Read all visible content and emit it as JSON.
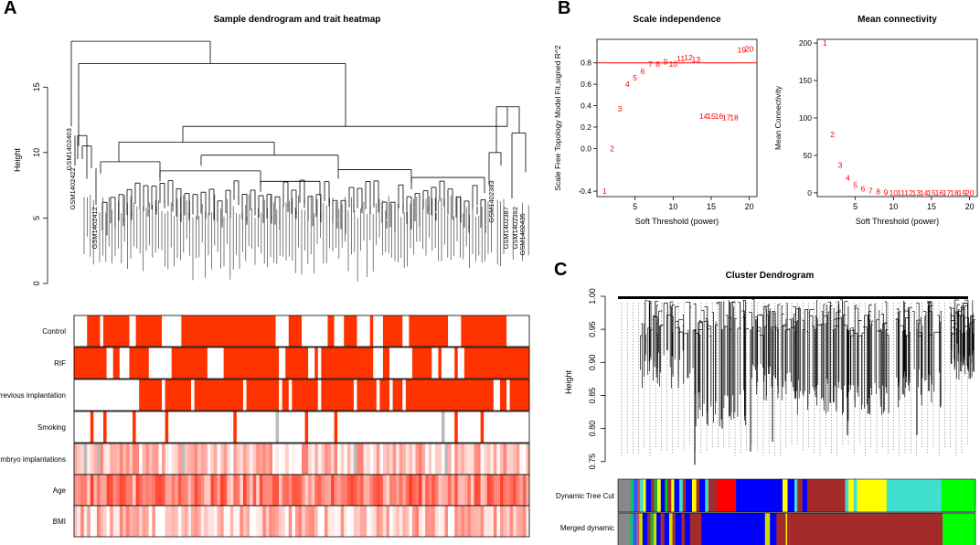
{
  "panels": {
    "a": "A",
    "b": "B",
    "c": "C"
  },
  "chart_data": [
    {
      "id": "A",
      "type": "dendrogram_heatmap",
      "title": "Sample dendrogram and trait heatmap",
      "ylabel": "Height",
      "ylim": [
        0,
        19
      ],
      "yticks": [
        0,
        5,
        10,
        15
      ],
      "labeled_samples": [
        "GSM1402403",
        "GSM1402422",
        "GSM1402383",
        "GSM1402392",
        "GSM1402435",
        "GSM1402387",
        "GSM1402412"
      ],
      "traits": [
        "Control",
        "RIF",
        "Previous implantation",
        "Smoking",
        "Embryo implantations",
        "Age",
        "BMI"
      ],
      "trait_types": [
        "binary",
        "binary",
        "binary",
        "binary_sparse",
        "continuous",
        "continuous",
        "continuous"
      ],
      "colors": {
        "high": "#ff3300",
        "missing": "#bbbbbb",
        "low": "#ffffff"
      }
    },
    {
      "id": "B1",
      "type": "scatter",
      "title": "Scale independence",
      "xlabel": "Soft Threshold (power)",
      "ylabel": "Scale Free Topology Model Fit,signed R^2",
      "xlim": [
        0,
        21
      ],
      "ylim": [
        -0.45,
        1.02
      ],
      "xticks": [
        5,
        10,
        15,
        20
      ],
      "yticks": [
        -0.4,
        0.0,
        0.2,
        0.4,
        0.6,
        0.8
      ],
      "ytick_labels": [
        "-0.4",
        "0.0",
        "0.2",
        "0.4",
        "0.6",
        "0.8"
      ],
      "hline": 0.8,
      "color": "#ff0000",
      "x": [
        1,
        2,
        3,
        4,
        5,
        6,
        7,
        8,
        9,
        10,
        11,
        12,
        13,
        14,
        15,
        16,
        17,
        18,
        19,
        20
      ],
      "y": [
        -0.4,
        0.0,
        0.37,
        0.6,
        0.66,
        0.72,
        0.79,
        0.79,
        0.81,
        0.79,
        0.84,
        0.85,
        0.83,
        0.3,
        0.3,
        0.3,
        0.29,
        0.29,
        0.92,
        0.93
      ],
      "labels": [
        "1",
        "2",
        "3",
        "4",
        "5",
        "6",
        "7",
        "8",
        "9",
        "10",
        "11",
        "12",
        "13",
        "14",
        "15",
        "16",
        "17",
        "18",
        "19",
        "20"
      ]
    },
    {
      "id": "B2",
      "type": "scatter",
      "title": "Mean connectivity",
      "xlabel": "Soft Threshold (power)",
      "ylabel": "Mean Connectivity",
      "xlim": [
        0,
        21
      ],
      "ylim": [
        -5,
        205
      ],
      "xticks": [
        5,
        10,
        15,
        20
      ],
      "yticks": [
        0,
        50,
        100,
        150,
        200
      ],
      "color": "#ff0000",
      "x": [
        1,
        2,
        3,
        4,
        5,
        6,
        7,
        8,
        9,
        10,
        11,
        12,
        13,
        14,
        15,
        16,
        17,
        18,
        19,
        20
      ],
      "y": [
        200,
        78,
        37,
        20,
        10,
        5.5,
        3,
        1.5,
        0.5,
        0,
        0,
        0,
        0,
        0,
        0,
        0,
        0,
        0,
        0,
        0
      ],
      "labels": [
        "1",
        "2",
        "3",
        "4",
        "5",
        "6",
        "7",
        "8",
        "9",
        "10",
        "11",
        "12",
        "13",
        "14",
        "15",
        "16",
        "17",
        "18",
        "19",
        "20"
      ]
    },
    {
      "id": "C",
      "type": "dendrogram_colorbars",
      "title": "Cluster Dendrogram",
      "ylabel": "Height",
      "ylim": [
        0.74,
        1.0
      ],
      "yticks": [
        0.75,
        0.8,
        0.85,
        0.9,
        0.95,
        1.0
      ],
      "ytick_labels": [
        "0.75",
        "0.80",
        "0.85",
        "0.90",
        "0.95",
        "1.00"
      ],
      "rows": [
        {
          "name": "Dynamic Tree Cut",
          "segments": [
            {
              "color": "#888888",
              "w": 3
            },
            {
              "color": "#00cc66",
              "w": 0.7
            },
            {
              "color": "#3355ff",
              "w": 0.9
            },
            {
              "color": "#cc5555",
              "w": 0.6
            },
            {
              "color": "#44ddcc",
              "w": 0.8
            },
            {
              "color": "#ffff00",
              "w": 0.6
            },
            {
              "color": "#0000ff",
              "w": 1.2
            },
            {
              "color": "#a52a2a",
              "w": 0.7
            },
            {
              "color": "#22aa44",
              "w": 0.8
            },
            {
              "color": "#ffff00",
              "w": 0.8
            },
            {
              "color": "#0000ff",
              "w": 1.0
            },
            {
              "color": "#00cc00",
              "w": 0.6
            },
            {
              "color": "#a52a2a",
              "w": 0.9
            },
            {
              "color": "#ffff00",
              "w": 0.7
            },
            {
              "color": "#0000ff",
              "w": 1.2
            },
            {
              "color": "#44ddcc",
              "w": 0.8
            },
            {
              "color": "#a52a2a",
              "w": 0.7
            },
            {
              "color": "#0000ff",
              "w": 1.5
            },
            {
              "color": "#ffff00",
              "w": 1.0
            },
            {
              "color": "#a52a2a",
              "w": 0.8
            },
            {
              "color": "#0000ff",
              "w": 1.3
            },
            {
              "color": "#44ddcc",
              "w": 0.8
            },
            {
              "color": "#a52a2a",
              "w": 2.0
            },
            {
              "color": "#ff0000",
              "w": 4.5
            },
            {
              "color": "#0000ff",
              "w": 11
            },
            {
              "color": "#ffff00",
              "w": 1.2
            },
            {
              "color": "#0000ff",
              "w": 1.6
            },
            {
              "color": "#44ddcc",
              "w": 0.7
            },
            {
              "color": "#a52a2a",
              "w": 1.2
            },
            {
              "color": "#0000ff",
              "w": 1.1
            },
            {
              "color": "#a52a2a",
              "w": 9
            },
            {
              "color": "#44ddcc",
              "w": 0.8
            },
            {
              "color": "#ffff00",
              "w": 1.2
            },
            {
              "color": "#44ddcc",
              "w": 0.8
            },
            {
              "color": "#ffff00",
              "w": 7
            },
            {
              "color": "#40e0d0",
              "w": 13
            },
            {
              "color": "#00ff00",
              "w": 8
            }
          ]
        },
        {
          "name": "Merged dynamic",
          "segments": [
            {
              "color": "#888888",
              "w": 3
            },
            {
              "color": "#00cc66",
              "w": 0.7
            },
            {
              "color": "#3355ff",
              "w": 0.9
            },
            {
              "color": "#cc5555",
              "w": 0.6
            },
            {
              "color": "#ccdd00",
              "w": 0.8
            },
            {
              "color": "#0000ff",
              "w": 1.2
            },
            {
              "color": "#a52a2a",
              "w": 0.7
            },
            {
              "color": "#22aa44",
              "w": 0.8
            },
            {
              "color": "#ccdd00",
              "w": 0.7
            },
            {
              "color": "#0000ff",
              "w": 1.0
            },
            {
              "color": "#a52a2a",
              "w": 0.9
            },
            {
              "color": "#0000ff",
              "w": 1.2
            },
            {
              "color": "#ccdd00",
              "w": 0.8
            },
            {
              "color": "#a52a2a",
              "w": 0.7
            },
            {
              "color": "#0000ff",
              "w": 1.5
            },
            {
              "color": "#a52a2a",
              "w": 0.8
            },
            {
              "color": "#0000ff",
              "w": 1.3
            },
            {
              "color": "#a52a2a",
              "w": 2.8
            },
            {
              "color": "#0000ff",
              "w": 15.5
            },
            {
              "color": "#ccdd00",
              "w": 1.2
            },
            {
              "color": "#0000ff",
              "w": 1.6
            },
            {
              "color": "#a52a2a",
              "w": 2.3
            },
            {
              "color": "#ffff00",
              "w": 0.3
            },
            {
              "color": "#a52a2a",
              "w": 38
            },
            {
              "color": "#00ff00",
              "w": 8
            }
          ]
        }
      ]
    }
  ]
}
